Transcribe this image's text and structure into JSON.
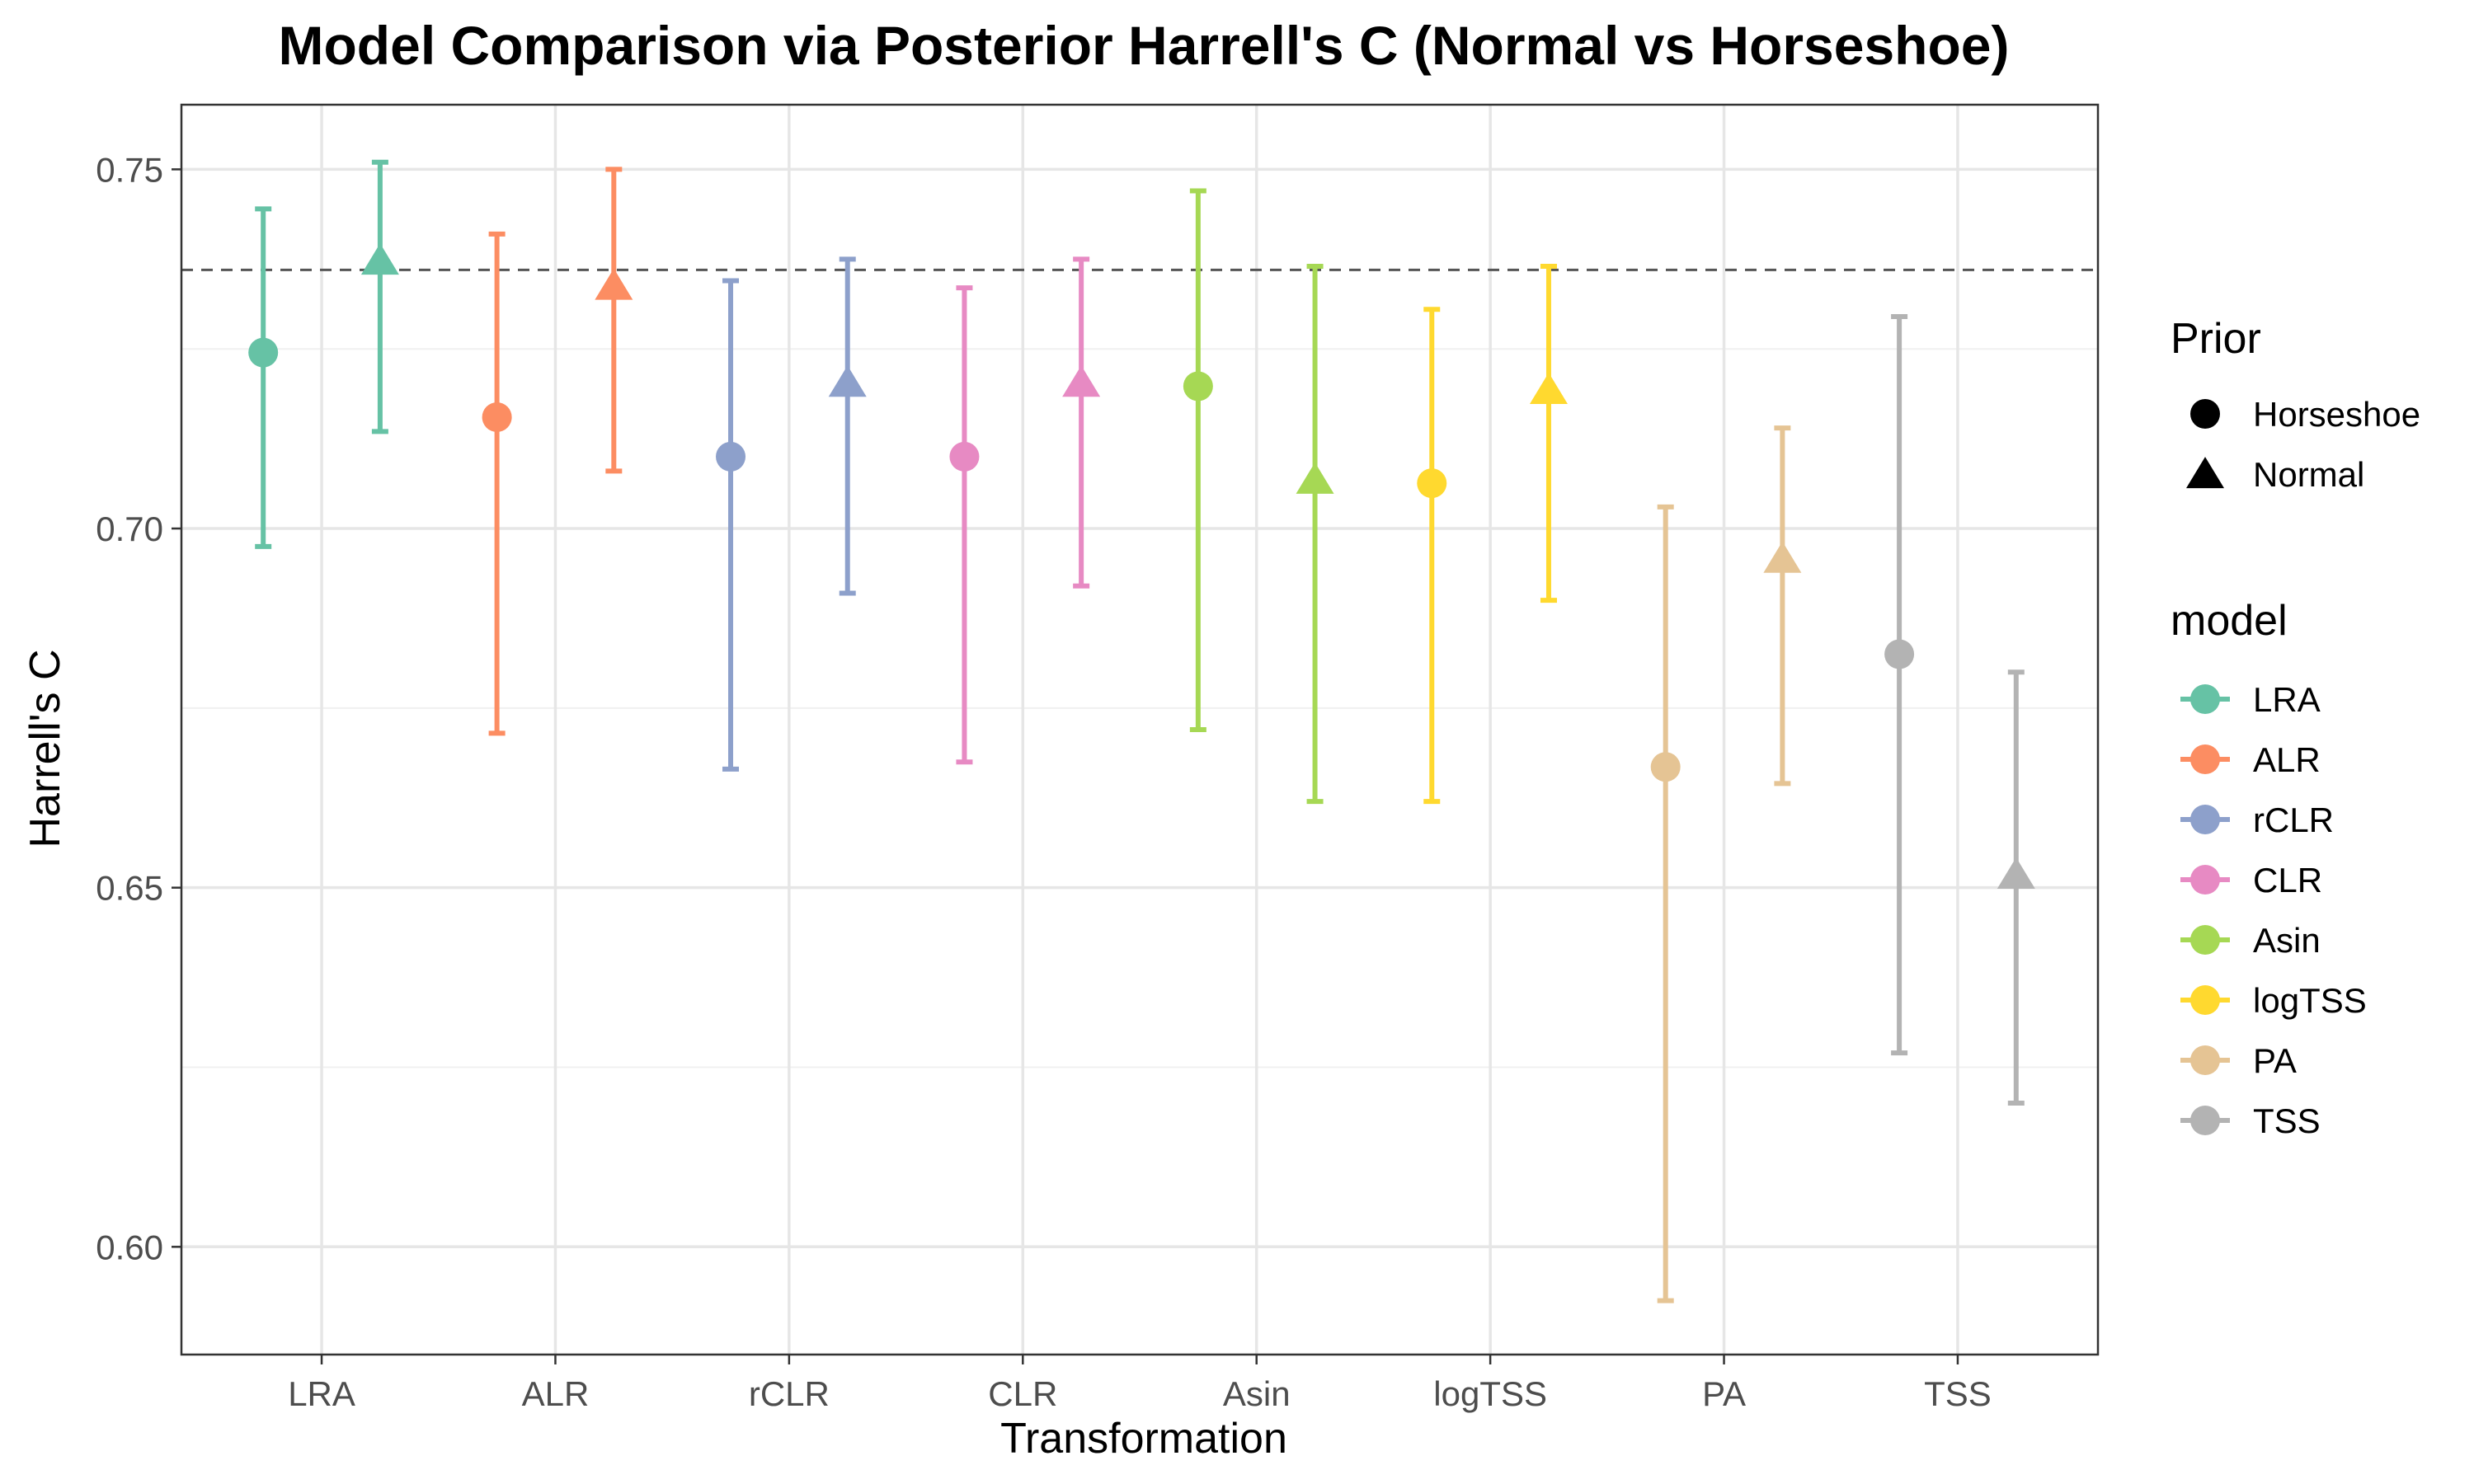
{
  "chart_data": {
    "type": "scatter",
    "title": "Model Comparison via Posterior Harrell's C (Normal vs Horseshoe)",
    "xlabel": "Transformation",
    "ylabel": "Harrell's C",
    "categories": [
      "LRA",
      "ALR",
      "rCLR",
      "CLR",
      "Asin",
      "logTSS",
      "PA",
      "TSS"
    ],
    "ylim": [
      0.585,
      0.759
    ],
    "yticks": [
      0.6,
      0.65,
      0.7,
      0.75
    ],
    "ytick_labels": [
      "0.60",
      "0.65",
      "0.70",
      "0.75"
    ],
    "reference_line": 0.736,
    "grid": true,
    "legend_position": "right",
    "colors": {
      "LRA": "#66c2a5",
      "ALR": "#fc8d62",
      "rCLR": "#8da0cb",
      "CLR": "#e78ac3",
      "Asin": "#a6d854",
      "logTSS": "#ffd92f",
      "PA": "#e5c494",
      "TSS": "#b3b3b3"
    },
    "series": [
      {
        "name": "Horseshoe",
        "shape": "circle",
        "values": [
          0.7245,
          0.7155,
          0.71,
          0.71,
          0.7198,
          0.7063,
          0.6668,
          0.6825
        ],
        "lower": [
          0.6975,
          0.6715,
          0.6665,
          0.6675,
          0.672,
          0.662,
          0.5925,
          0.627
        ],
        "upper": [
          0.7445,
          0.741,
          0.7345,
          0.7335,
          0.747,
          0.7305,
          0.703,
          0.7295
        ]
      },
      {
        "name": "Normal",
        "shape": "triangle",
        "values": [
          0.737,
          0.7335,
          0.72,
          0.72,
          0.7065,
          0.719,
          0.6955,
          0.6515
        ],
        "lower": [
          0.7135,
          0.708,
          0.691,
          0.692,
          0.662,
          0.69,
          0.6645,
          0.62
        ],
        "upper": [
          0.751,
          0.75,
          0.7375,
          0.7375,
          0.7365,
          0.7365,
          0.714,
          0.68
        ]
      }
    ]
  },
  "legend": {
    "prior_title": "Prior",
    "prior_items": [
      "Horseshoe",
      "Normal"
    ],
    "model_title": "model",
    "model_items": [
      "LRA",
      "ALR",
      "rCLR",
      "CLR",
      "Asin",
      "logTSS",
      "PA",
      "TSS"
    ]
  }
}
